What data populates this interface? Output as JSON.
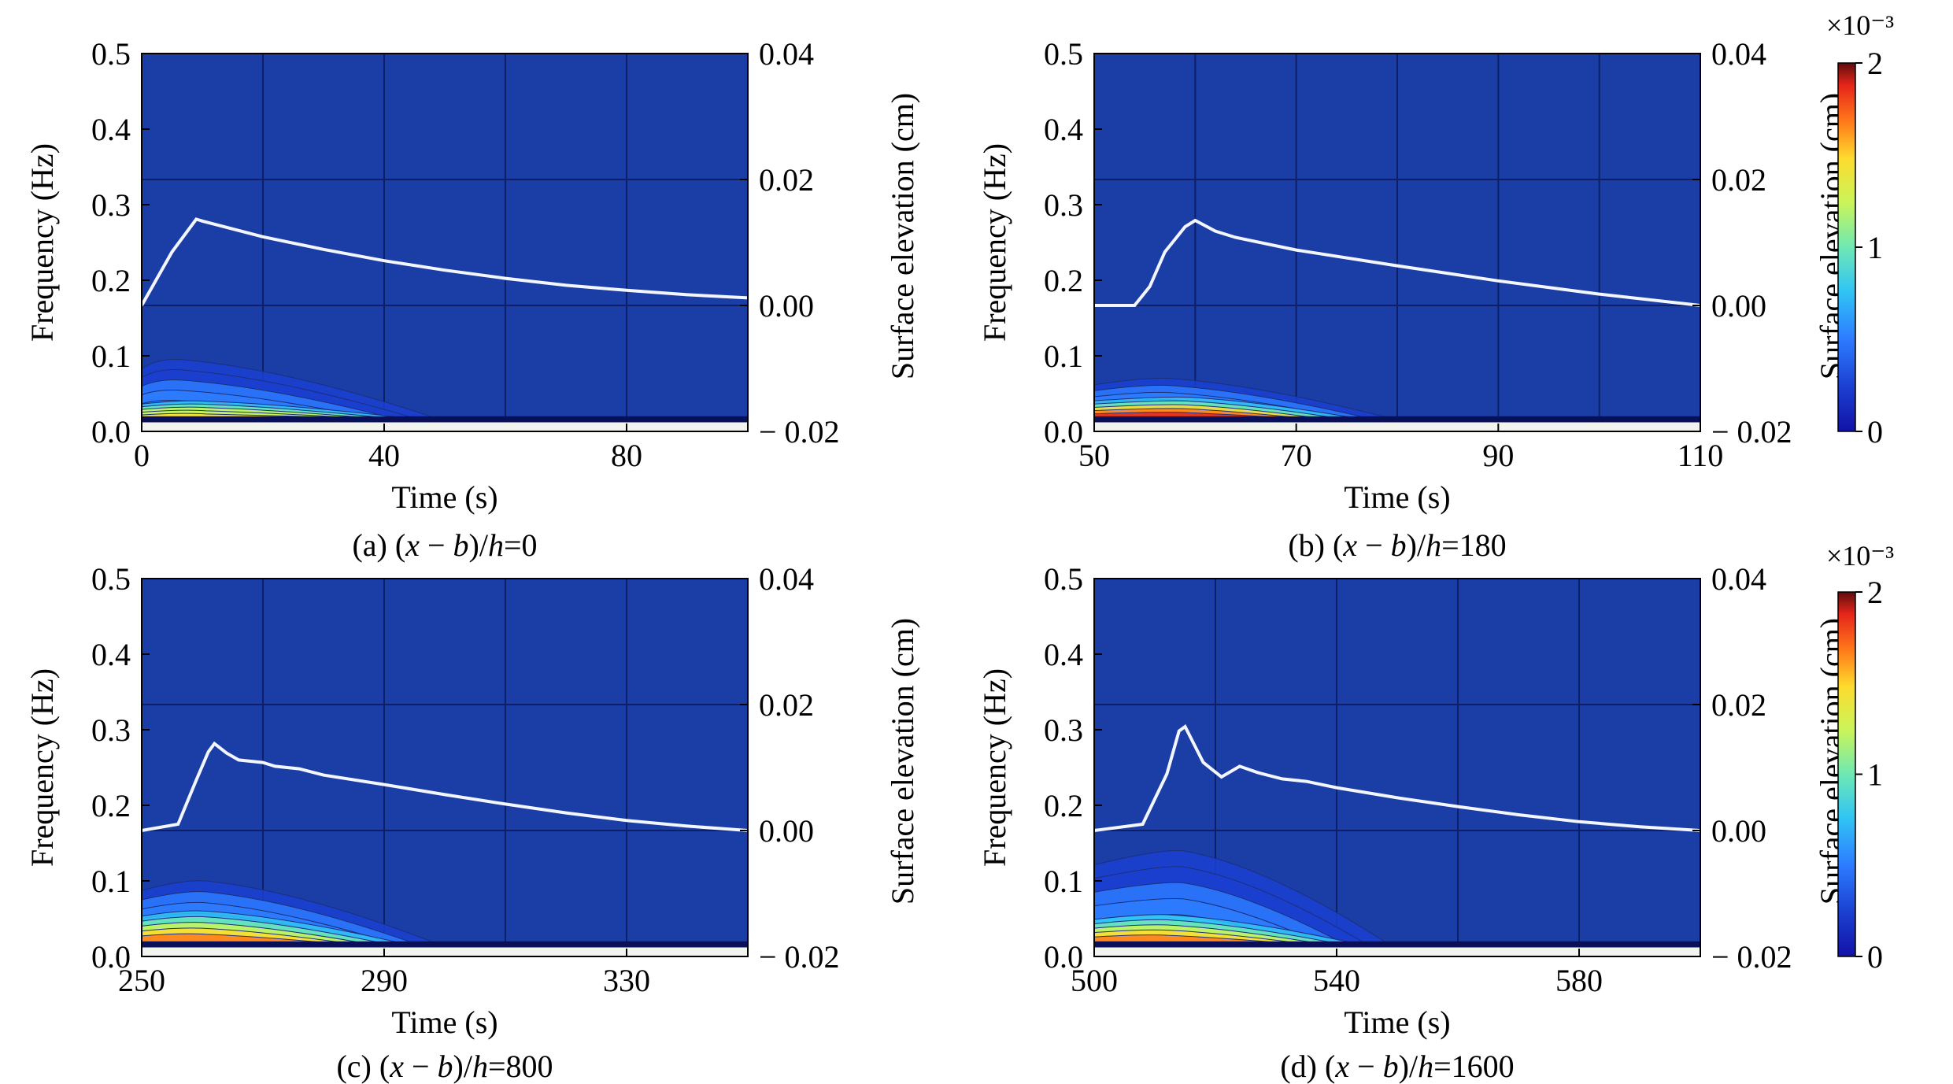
{
  "chart_data": [
    {
      "type": "heatmap",
      "caption": "(a) (x − b)/h=0",
      "caption_parts": {
        "open": "(a) (",
        "x": "x",
        "minus": " − ",
        "b": "b",
        "slash": ")/",
        "h": "h",
        "rest": "=0"
      },
      "xlabel": "Time (s)",
      "ylabel": "Frequency (Hz)",
      "y2label": "Surface elevation (cm)",
      "xlim": [
        0,
        100
      ],
      "ylim": [
        0,
        0.5
      ],
      "y2lim": [
        -0.02,
        0.04
      ],
      "xticks": [
        "0",
        "40",
        "80"
      ],
      "xtick_values": [
        0,
        40,
        80
      ],
      "yticks": [
        "0.0",
        "0.1",
        "0.2",
        "0.3",
        "0.4",
        "0.5"
      ],
      "ytick_values": [
        0,
        0.1,
        0.2,
        0.3,
        0.4,
        0.5
      ],
      "y2ticks": [
        "− 0.02",
        "0.00",
        "0.02",
        "0.04"
      ],
      "y2tick_values": [
        -0.02,
        0,
        0.02,
        0.04
      ],
      "surface_elevation": {
        "x": [
          0,
          5,
          9,
          10,
          20,
          30,
          40,
          50,
          60,
          70,
          80,
          90,
          100
        ],
        "y": [
          0.0,
          0.0085,
          0.0137,
          0.0134,
          0.0109,
          0.0089,
          0.0071,
          0.0056,
          0.0043,
          0.0032,
          0.0024,
          0.0017,
          0.0012
        ]
      },
      "wavelet_energy_peaks": [
        {
          "t": 4,
          "f_top": 0.095,
          "level": 0.25
        },
        {
          "t": 8,
          "f_top": 0.04,
          "level": 0.7
        }
      ]
    },
    {
      "type": "heatmap",
      "caption": "(b) (x − b)/h=180",
      "caption_parts": {
        "open": "(b) (",
        "x": "x",
        "minus": " − ",
        "b": "b",
        "slash": ")/",
        "h": "h",
        "rest": "=180"
      },
      "xlabel": "Time (s)",
      "ylabel": "Frequency (Hz)",
      "y2label": "Surface elevation (cm)",
      "xlim": [
        50,
        110
      ],
      "ylim": [
        0,
        0.5
      ],
      "y2lim": [
        -0.02,
        0.04
      ],
      "xticks": [
        "50",
        "70",
        "90",
        "110"
      ],
      "xtick_values": [
        50,
        70,
        90,
        110
      ],
      "yticks": [
        "0.0",
        "0.1",
        "0.2",
        "0.3",
        "0.4",
        "0.5"
      ],
      "ytick_values": [
        0,
        0.1,
        0.2,
        0.3,
        0.4,
        0.5
      ],
      "y2ticks": [
        "− 0.02",
        "0.00",
        "0.02",
        "0.04"
      ],
      "y2tick_values": [
        -0.02,
        0,
        0.02,
        0.04
      ],
      "surface_elevation": {
        "x": [
          50,
          54,
          55.5,
          57,
          59,
          60,
          62,
          64,
          70,
          80,
          90,
          100,
          110
        ],
        "y": [
          0.0,
          0.0,
          0.003,
          0.0085,
          0.0125,
          0.0135,
          0.0118,
          0.0108,
          0.0088,
          0.0063,
          0.0039,
          0.0018,
          0.0
        ]
      },
      "wavelet_energy_peaks": [
        {
          "t": 56,
          "f_top": 0.07,
          "level": 0.3
        },
        {
          "t": 58,
          "f_top": 0.045,
          "level": 0.85
        }
      ],
      "colorbar": {
        "label": "×10⁻³",
        "ticks": [
          "0",
          "1",
          "2"
        ],
        "tick_values": [
          0,
          1,
          2
        ],
        "range": [
          0,
          2
        ]
      }
    },
    {
      "type": "heatmap",
      "caption": "(c) (x − b)/h=800",
      "caption_parts": {
        "open": "(c) (",
        "x": "x",
        "minus": " − ",
        "b": "b",
        "slash": ")/",
        "h": "h",
        "rest": "=800"
      },
      "xlabel": "Time (s)",
      "ylabel": "Frequency (Hz)",
      "y2label": "Surface elevation (cm)",
      "xlim": [
        250,
        350
      ],
      "ylim": [
        0,
        0.5
      ],
      "y2lim": [
        -0.02,
        0.04
      ],
      "xticks": [
        "250",
        "290",
        "330"
      ],
      "xtick_values": [
        250,
        290,
        330
      ],
      "yticks": [
        "0.0",
        "0.1",
        "0.2",
        "0.3",
        "0.4",
        "0.5"
      ],
      "ytick_values": [
        0,
        0.1,
        0.2,
        0.3,
        0.4,
        0.5
      ],
      "y2ticks": [
        "− 0.02",
        "0.00",
        "0.02",
        "0.04"
      ],
      "y2tick_values": [
        -0.02,
        0,
        0.02,
        0.04
      ],
      "surface_elevation": {
        "x": [
          250,
          256,
          259,
          261,
          262,
          264,
          266,
          270,
          272,
          276,
          280,
          290,
          300,
          310,
          320,
          330,
          340,
          350
        ],
        "y": [
          0.0,
          0.001,
          0.008,
          0.0125,
          0.0138,
          0.0123,
          0.0112,
          0.0108,
          0.0102,
          0.0098,
          0.0088,
          0.0073,
          0.0057,
          0.0042,
          0.0028,
          0.0016,
          0.0007,
          0.0
        ]
      },
      "wavelet_energy_peaks": [
        {
          "t": 258,
          "f_top": 0.1,
          "level": 0.3
        },
        {
          "t": 258,
          "f_top": 0.06,
          "level": 0.75
        }
      ]
    },
    {
      "type": "heatmap",
      "caption": "(d) (x − b)/h=1600",
      "caption_parts": {
        "open": "(d) (",
        "x": "x",
        "minus": " − ",
        "b": "b",
        "slash": ")/",
        "h": "h",
        "rest": "=1600"
      },
      "xlabel": "Time (s)",
      "ylabel": "Frequency (Hz)",
      "y2label": "Surface elevation (cm)",
      "xlim": [
        500,
        600
      ],
      "ylim": [
        0,
        0.5
      ],
      "y2lim": [
        -0.02,
        0.04
      ],
      "xticks": [
        "500",
        "540",
        "580"
      ],
      "xtick_values": [
        500,
        540,
        580
      ],
      "yticks": [
        "0.0",
        "0.1",
        "0.2",
        "0.3",
        "0.4",
        "0.5"
      ],
      "ytick_values": [
        0,
        0.1,
        0.2,
        0.3,
        0.4,
        0.5
      ],
      "y2ticks": [
        "− 0.02",
        "0.00",
        "0.02",
        "0.04"
      ],
      "y2tick_values": [
        -0.02,
        0,
        0.02,
        0.04
      ],
      "surface_elevation": {
        "x": [
          500,
          508,
          512,
          514,
          515,
          518,
          521,
          524,
          527,
          531,
          535,
          540,
          550,
          560,
          570,
          580,
          590,
          600
        ],
        "y": [
          0.0,
          0.001,
          0.009,
          0.0158,
          0.0165,
          0.0108,
          0.0085,
          0.0102,
          0.0092,
          0.0082,
          0.0078,
          0.0068,
          0.0052,
          0.0038,
          0.0025,
          0.0014,
          0.0006,
          0.0
        ]
      },
      "wavelet_energy_peaks": [
        {
          "t": 512,
          "f_top": 0.14,
          "level": 0.28
        },
        {
          "t": 510,
          "f_top": 0.055,
          "level": 0.8
        }
      ],
      "colorbar": {
        "label": "×10⁻³",
        "ticks": [
          "0",
          "1",
          "2"
        ],
        "tick_values": [
          0,
          1,
          2
        ],
        "range": [
          0,
          2
        ]
      }
    }
  ],
  "colors": {
    "background": "#1a3ea6",
    "grid": "#0d1f66",
    "surface_line": "#f4f6ff",
    "colormap": [
      "#0a0a8c",
      "#1b3fd0",
      "#2d7bff",
      "#31c4f4",
      "#6fe8b4",
      "#c9f55a",
      "#fddc2e",
      "#ff7a1a",
      "#e5251a",
      "#6e0f0f"
    ]
  }
}
